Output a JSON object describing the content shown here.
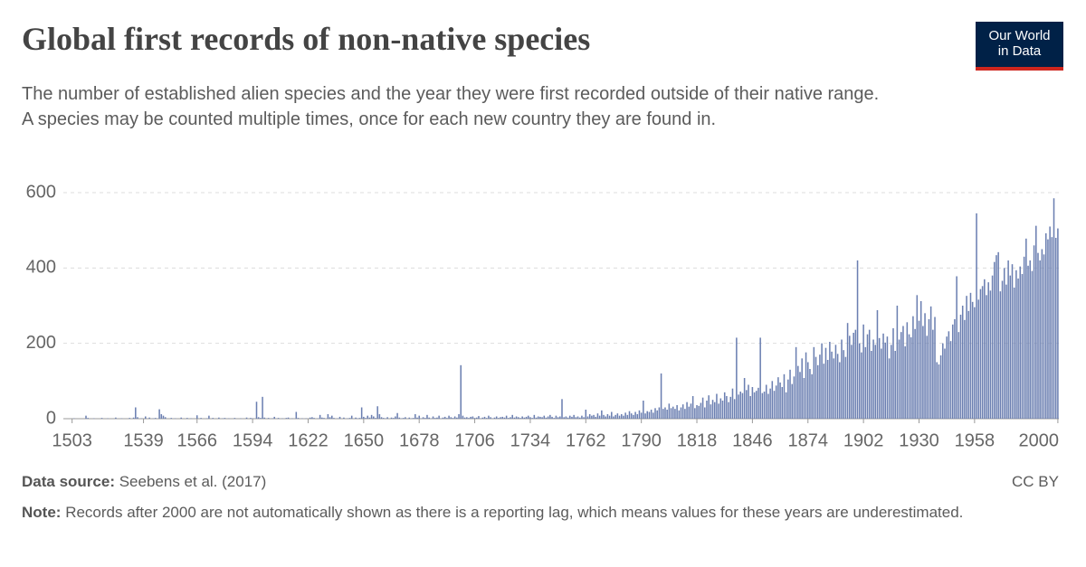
{
  "header": {
    "title": "Global first records of non-native species",
    "subtitle": [
      "The number of established alien species and the year they were first recorded outside of their native range.",
      "A species may be counted multiple times, once for each new country they are found in."
    ],
    "logo": [
      "Our World",
      "in Data"
    ]
  },
  "footer": {
    "source_label": "Data source:",
    "source": "Seebens et al. (2017)",
    "license": "CC BY",
    "note_label": "Note:",
    "note": "Records after 2000 are not automatically shown as there is a reporting lag, which means values for these years are underestimated."
  },
  "chart_data": {
    "type": "bar",
    "color": "#6b7fb1",
    "grid": true,
    "xlim": [
      1500,
      2001
    ],
    "xticks": [
      1503,
      1539,
      1566,
      1594,
      1622,
      1650,
      1678,
      1706,
      1734,
      1762,
      1790,
      1818,
      1846,
      1874,
      1902,
      1930,
      1958,
      2000
    ],
    "ylim": [
      0,
      600
    ],
    "yticks": [
      0,
      200,
      400,
      600
    ],
    "x": [
      1503,
      1504,
      1505,
      1506,
      1507,
      1508,
      1509,
      1510,
      1511,
      1512,
      1513,
      1514,
      1515,
      1516,
      1517,
      1518,
      1519,
      1520,
      1521,
      1522,
      1523,
      1524,
      1525,
      1526,
      1527,
      1528,
      1529,
      1530,
      1531,
      1532,
      1533,
      1534,
      1535,
      1536,
      1537,
      1538,
      1539,
      1540,
      1541,
      1542,
      1543,
      1544,
      1545,
      1546,
      1547,
      1548,
      1549,
      1550,
      1551,
      1552,
      1553,
      1554,
      1555,
      1556,
      1557,
      1558,
      1559,
      1560,
      1561,
      1562,
      1563,
      1564,
      1565,
      1566,
      1567,
      1568,
      1569,
      1570,
      1571,
      1572,
      1573,
      1574,
      1575,
      1576,
      1577,
      1578,
      1579,
      1580,
      1581,
      1582,
      1583,
      1584,
      1585,
      1586,
      1587,
      1588,
      1589,
      1590,
      1591,
      1592,
      1593,
      1594,
      1595,
      1596,
      1597,
      1598,
      1599,
      1600,
      1601,
      1602,
      1603,
      1604,
      1605,
      1606,
      1607,
      1608,
      1609,
      1610,
      1611,
      1612,
      1613,
      1614,
      1615,
      1616,
      1617,
      1618,
      1619,
      1620,
      1621,
      1622,
      1623,
      1624,
      1625,
      1626,
      1627,
      1628,
      1629,
      1630,
      1631,
      1632,
      1633,
      1634,
      1635,
      1636,
      1637,
      1638,
      1639,
      1640,
      1641,
      1642,
      1643,
      1644,
      1645,
      1646,
      1647,
      1648,
      1649,
      1650,
      1651,
      1652,
      1653,
      1654,
      1655,
      1656,
      1657,
      1658,
      1659,
      1660,
      1661,
      1662,
      1663,
      1664,
      1665,
      1666,
      1667,
      1668,
      1669,
      1670,
      1671,
      1672,
      1673,
      1674,
      1675,
      1676,
      1677,
      1678,
      1679,
      1680,
      1681,
      1682,
      1683,
      1684,
      1685,
      1686,
      1687,
      1688,
      1689,
      1690,
      1691,
      1692,
      1693,
      1694,
      1695,
      1696,
      1697,
      1698,
      1699,
      1700,
      1701,
      1702,
      1703,
      1704,
      1705,
      1706,
      1707,
      1708,
      1709,
      1710,
      1711,
      1712,
      1713,
      1714,
      1715,
      1716,
      1717,
      1718,
      1719,
      1720,
      1721,
      1722,
      1723,
      1724,
      1725,
      1726,
      1727,
      1728,
      1729,
      1730,
      1731,
      1732,
      1733,
      1734,
      1735,
      1736,
      1737,
      1738,
      1739,
      1740,
      1741,
      1742,
      1743,
      1744,
      1745,
      1746,
      1747,
      1748,
      1749,
      1750,
      1751,
      1752,
      1753,
      1754,
      1755,
      1756,
      1757,
      1758,
      1759,
      1760,
      1761,
      1762,
      1763,
      1764,
      1765,
      1766,
      1767,
      1768,
      1769,
      1770,
      1771,
      1772,
      1773,
      1774,
      1775,
      1776,
      1777,
      1778,
      1779,
      1780,
      1781,
      1782,
      1783,
      1784,
      1785,
      1786,
      1787,
      1788,
      1789,
      1790,
      1791,
      1792,
      1793,
      1794,
      1795,
      1796,
      1797,
      1798,
      1799,
      1800,
      1801,
      1802,
      1803,
      1804,
      1805,
      1806,
      1807,
      1808,
      1809,
      1810,
      1811,
      1812,
      1813,
      1814,
      1815,
      1816,
      1817,
      1818,
      1819,
      1820,
      1821,
      1822,
      1823,
      1824,
      1825,
      1826,
      1827,
      1828,
      1829,
      1830,
      1831,
      1832,
      1833,
      1834,
      1835,
      1836,
      1837,
      1838,
      1839,
      1840,
      1841,
      1842,
      1843,
      1844,
      1845,
      1846,
      1847,
      1848,
      1849,
      1850,
      1851,
      1852,
      1853,
      1854,
      1855,
      1856,
      1857,
      1858,
      1859,
      1860,
      1861,
      1862,
      1863,
      1864,
      1865,
      1866,
      1867,
      1868,
      1869,
      1870,
      1871,
      1872,
      1873,
      1874,
      1875,
      1876,
      1877,
      1878,
      1879,
      1880,
      1881,
      1882,
      1883,
      1884,
      1885,
      1886,
      1887,
      1888,
      1889,
      1890,
      1891,
      1892,
      1893,
      1894,
      1895,
      1896,
      1897,
      1898,
      1899,
      1900,
      1901,
      1902,
      1903,
      1904,
      1905,
      1906,
      1907,
      1908,
      1909,
      1910,
      1911,
      1912,
      1913,
      1914,
      1915,
      1916,
      1917,
      1918,
      1919,
      1920,
      1921,
      1922,
      1923,
      1924,
      1925,
      1926,
      1927,
      1928,
      1929,
      1930,
      1931,
      1932,
      1933,
      1934,
      1935,
      1936,
      1937,
      1938,
      1939,
      1940,
      1941,
      1942,
      1943,
      1944,
      1945,
      1946,
      1947,
      1948,
      1949,
      1950,
      1951,
      1952,
      1953,
      1954,
      1955,
      1956,
      1957,
      1958,
      1959,
      1960,
      1961,
      1962,
      1963,
      1964,
      1965,
      1966,
      1967,
      1968,
      1969,
      1970,
      1971,
      1972,
      1973,
      1974,
      1975,
      1976,
      1977,
      1978,
      1979,
      1980,
      1981,
      1982,
      1983,
      1984,
      1985,
      1986,
      1987,
      1988,
      1989,
      1990,
      1991,
      1992,
      1993,
      1994,
      1995,
      1996,
      1997,
      1998,
      1999,
      2000
    ],
    "values": [
      0,
      1,
      0,
      0,
      0,
      0,
      0,
      8,
      2,
      0,
      0,
      1,
      0,
      0,
      0,
      2,
      0,
      0,
      1,
      0,
      0,
      0,
      3,
      0,
      0,
      1,
      0,
      0,
      0,
      2,
      0,
      3,
      30,
      4,
      0,
      1,
      0,
      6,
      0,
      3,
      0,
      1,
      2,
      0,
      25,
      12,
      8,
      4,
      0,
      0,
      2,
      0,
      1,
      0,
      0,
      3,
      0,
      0,
      2,
      0,
      1,
      0,
      0,
      9,
      0,
      2,
      0,
      0,
      1,
      8,
      0,
      2,
      0,
      0,
      3,
      0,
      1,
      2,
      0,
      1,
      0,
      0,
      2,
      0,
      0,
      1,
      0,
      0,
      3,
      0,
      2,
      1,
      0,
      45,
      4,
      2,
      58,
      3,
      0,
      2,
      0,
      1,
      5,
      0,
      2,
      0,
      1,
      0,
      2,
      3,
      0,
      1,
      0,
      18,
      2,
      0,
      1,
      0,
      1,
      0,
      3,
      4,
      2,
      0,
      1,
      10,
      3,
      2,
      0,
      12,
      4,
      8,
      2,
      0,
      1,
      5,
      0,
      3,
      0,
      1,
      2,
      8,
      0,
      3,
      1,
      2,
      30,
      5,
      2,
      8,
      3,
      10,
      6,
      2,
      33,
      12,
      4,
      2,
      1,
      4,
      0,
      3,
      2,
      6,
      15,
      3,
      1,
      2,
      4,
      0,
      3,
      1,
      2,
      12,
      3,
      8,
      1,
      4,
      2,
      10,
      3,
      1,
      6,
      2,
      3,
      8,
      1,
      3,
      5,
      2,
      8,
      4,
      2,
      6,
      3,
      12,
      142,
      8,
      3,
      4,
      2,
      5,
      6,
      2,
      3,
      7,
      1,
      3,
      5,
      2,
      8,
      4,
      1,
      3,
      6,
      2,
      4,
      5,
      3,
      8,
      2,
      4,
      10,
      3,
      6,
      4,
      2,
      6,
      3,
      5,
      8,
      4,
      2,
      10,
      3,
      6,
      5,
      4,
      8,
      3,
      6,
      10,
      5,
      2,
      8,
      4,
      6,
      52,
      4,
      6,
      3,
      8,
      5,
      10,
      4,
      6,
      3,
      8,
      4,
      24,
      6,
      12,
      8,
      10,
      5,
      14,
      8,
      22,
      10,
      6,
      12,
      8,
      18,
      6,
      10,
      14,
      8,
      12,
      8,
      16,
      10,
      20,
      14,
      10,
      18,
      12,
      22,
      16,
      48,
      14,
      20,
      18,
      24,
      16,
      28,
      22,
      30,
      120,
      26,
      30,
      24,
      40,
      28,
      32,
      26,
      36,
      22,
      30,
      38,
      26,
      44,
      32,
      40,
      60,
      28,
      36,
      34,
      42,
      56,
      30,
      48,
      62,
      38,
      50,
      44,
      66,
      40,
      54,
      48,
      70,
      60,
      44,
      58,
      80,
      52,
      215,
      64,
      72,
      68,
      108,
      76,
      90,
      60,
      84,
      70,
      74,
      82,
      215,
      68,
      72,
      90,
      66,
      80,
      100,
      74,
      88,
      110,
      96,
      84,
      118,
      70,
      104,
      130,
      92,
      112,
      190,
      140,
      124,
      160,
      108,
      176,
      150,
      132,
      118,
      190,
      164,
      142,
      170,
      200,
      146,
      188,
      156,
      204,
      178,
      160,
      196,
      172,
      150,
      210,
      182,
      164,
      254,
      220,
      196,
      228,
      236,
      420,
      200,
      176,
      250,
      190,
      224,
      236,
      180,
      210,
      196,
      288,
      214,
      186,
      226,
      202,
      218,
      160,
      196,
      240,
      180,
      300,
      210,
      230,
      246,
      192,
      256,
      224,
      216,
      272,
      238,
      328,
      260,
      312,
      246,
      280,
      220,
      264,
      298,
      236,
      270,
      150,
      144,
      168,
      200,
      186,
      218,
      232,
      206,
      250,
      264,
      378,
      230,
      276,
      300,
      262,
      326,
      286,
      334,
      310,
      296,
      545,
      316,
      344,
      352,
      370,
      328,
      362,
      340,
      380,
      416,
      434,
      442,
      338,
      366,
      400,
      356,
      420,
      380,
      410,
      348,
      394,
      372,
      404,
      384,
      430,
      478,
      406,
      420,
      392,
      460,
      512,
      440,
      420,
      450,
      436,
      492,
      476,
      510,
      482,
      585,
      480,
      505
    ]
  }
}
